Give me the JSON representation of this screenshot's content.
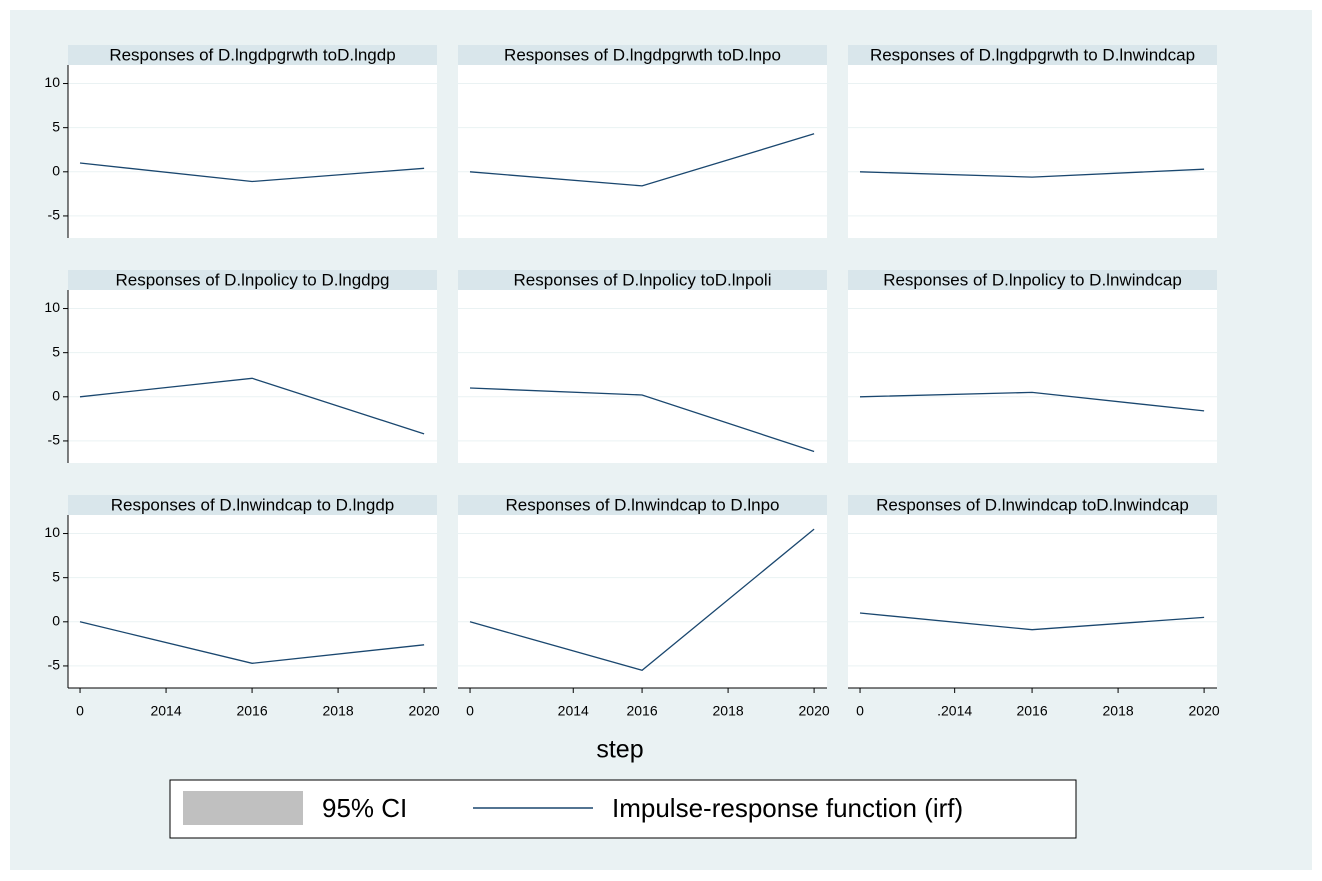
{
  "chart_data": [
    {
      "type": "line",
      "title": "Responses of D.lngdpgrwth toD.lngdp",
      "x": [
        0,
        2,
        4
      ],
      "values": [
        1,
        -1.1,
        0.4
      ]
    },
    {
      "type": "line",
      "title": "Responses of D.lngdpgrwth toD.lnpo",
      "x": [
        0,
        2,
        4
      ],
      "values": [
        0,
        -1.6,
        4.3
      ]
    },
    {
      "type": "line",
      "title": "Responses of D.lngdpgrwth to D.lnwindcap",
      "x": [
        0,
        2,
        4
      ],
      "values": [
        0,
        -0.6,
        0.3
      ]
    },
    {
      "type": "line",
      "title": "Responses of D.lnpolicy to D.lngdpg",
      "x": [
        0,
        2,
        4
      ],
      "values": [
        0,
        2.1,
        -4.2
      ]
    },
    {
      "type": "line",
      "title": "Responses of D.lnpolicy toD.lnpoli",
      "x": [
        0,
        2,
        4
      ],
      "values": [
        1,
        0.2,
        -6.2
      ]
    },
    {
      "type": "line",
      "title": "Responses of D.lnpolicy to D.lnwindcap",
      "x": [
        0,
        2,
        4
      ],
      "values": [
        0,
        0.5,
        -1.6
      ]
    },
    {
      "type": "line",
      "title": "Responses of D.lnwindcap to D.lngdp",
      "x": [
        0,
        2,
        4
      ],
      "values": [
        0,
        -4.7,
        -2.6
      ],
      "xticks": [
        0,
        {
          "value": 1,
          "label": "2014"
        },
        {
          "value": 2,
          "label": "2016"
        },
        {
          "value": 3,
          "label": "2018"
        },
        {
          "value": 4,
          "label": "2020"
        }
      ]
    },
    {
      "type": "line",
      "title": "Responses of D.lnwindcap to D.lnpo",
      "x": [
        0,
        2,
        4
      ],
      "values": [
        0,
        -5.5,
        10.5
      ],
      "xticks": [
        0,
        {
          "value": 1.2,
          "label": "2014"
        },
        {
          "value": 2,
          "label": "2016"
        },
        {
          "value": 3,
          "label": "2018"
        },
        {
          "value": 4,
          "label": "2020"
        }
      ]
    },
    {
      "type": "line",
      "title": "Responses of  D.lnwindcap toD.lnwindcap",
      "x": [
        0,
        2,
        4
      ],
      "values": [
        1,
        -0.9,
        0.5
      ],
      "xticks": [
        0,
        {
          "value": 1.1,
          "label": ".2014"
        },
        {
          "value": 2,
          "label": "2016"
        },
        {
          "value": 3,
          "label": "2018"
        },
        {
          "value": 4,
          "label": "2020"
        }
      ]
    }
  ],
  "xlabel": "step",
  "xlim": [
    -0.14,
    4.15
  ],
  "ylim": [
    -7.5,
    12.1
  ],
  "yticks": [
    -5,
    0,
    5,
    10
  ],
  "grid": true,
  "line_color": "#1a476f",
  "legend": {
    "ci": {
      "name": "95% CI",
      "color": "#c0c0c0"
    },
    "irf": {
      "name": "Impulse-response function (irf)",
      "color": "#1a476f"
    }
  }
}
